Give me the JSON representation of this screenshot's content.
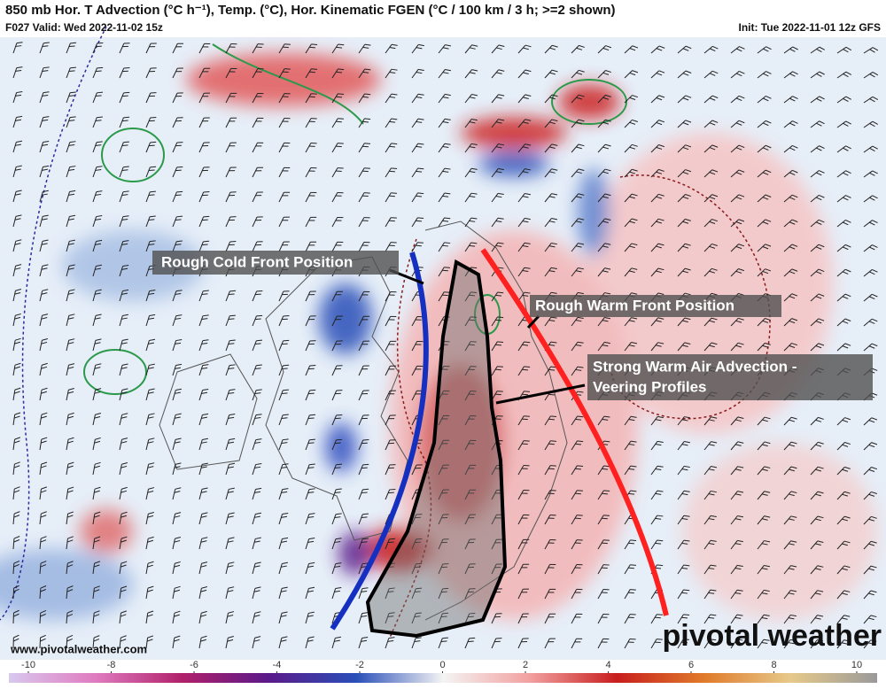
{
  "header": {
    "title": "850 mb Hor. T Advection (°C h⁻¹), Temp. (°C), Hor. Kinematic FGEN (°C / 100 km / 3 h; >=2 shown)",
    "valid": "F027 Valid: Wed 2022-11-02 15z",
    "init": "Init: Tue 2022-11-01 12z GFS"
  },
  "annotations": [
    {
      "label": "Rough Cold Front Position"
    },
    {
      "label": "Rough Warm Front Position"
    },
    {
      "lines": [
        "Strong Warm Air Advection -",
        "Veering Profiles"
      ]
    }
  ],
  "footer": {
    "website": "www.pivotalweather.com",
    "logo": "pivotal weather"
  },
  "colorbar": {
    "ticks": [
      -10,
      -8,
      -6,
      -4,
      -2,
      0,
      2,
      4,
      6,
      8,
      10
    ],
    "range": [
      -10,
      10
    ]
  }
}
